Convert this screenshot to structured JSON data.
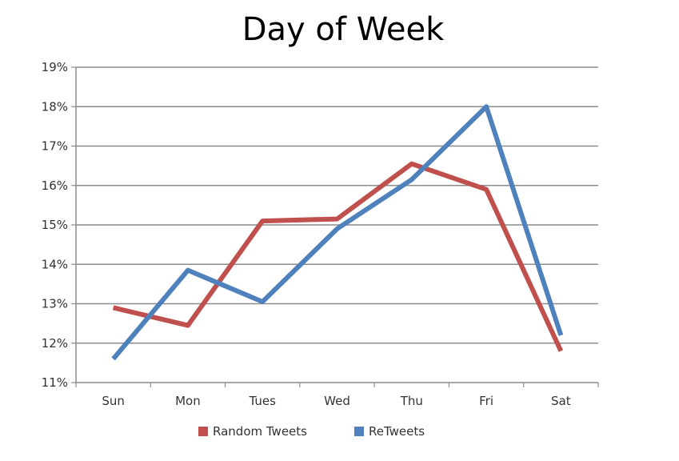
{
  "chart_data": {
    "type": "line",
    "title": "Day of Week",
    "xlabel": "",
    "ylabel": "",
    "categories": [
      "Sun",
      "Mon",
      "Tues",
      "Wed",
      "Thu",
      "Fri",
      "Sat"
    ],
    "ylim": [
      11,
      19
    ],
    "yticks": [
      11,
      12,
      13,
      14,
      15,
      16,
      17,
      18,
      19
    ],
    "ytick_labels": [
      "11%",
      "12%",
      "13%",
      "14%",
      "15%",
      "16%",
      "17%",
      "18%",
      "19%"
    ],
    "grid": true,
    "legend_position": "bottom",
    "series": [
      {
        "name": "Random Tweets",
        "color": "#c0504d",
        "values": [
          12.9,
          12.45,
          15.1,
          15.15,
          16.55,
          15.9,
          11.8
        ]
      },
      {
        "name": "ReTweets",
        "color": "#4f81bd",
        "values": [
          11.6,
          13.85,
          13.05,
          14.9,
          16.15,
          18.0,
          12.2
        ]
      }
    ]
  }
}
